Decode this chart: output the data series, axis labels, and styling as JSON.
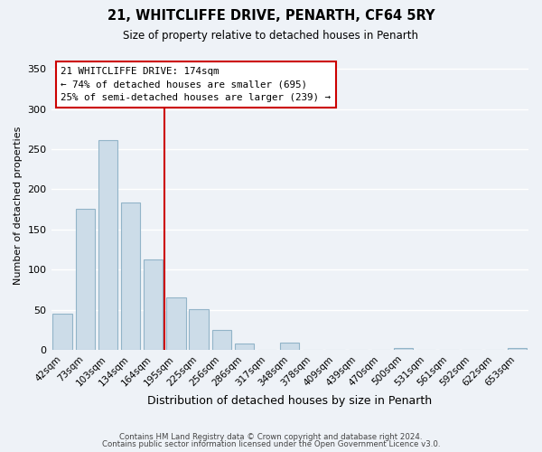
{
  "title": "21, WHITCLIFFE DRIVE, PENARTH, CF64 5RY",
  "subtitle": "Size of property relative to detached houses in Penarth",
  "xlabel": "Distribution of detached houses by size in Penarth",
  "ylabel": "Number of detached properties",
  "bar_labels": [
    "42sqm",
    "73sqm",
    "103sqm",
    "134sqm",
    "164sqm",
    "195sqm",
    "225sqm",
    "256sqm",
    "286sqm",
    "317sqm",
    "348sqm",
    "378sqm",
    "409sqm",
    "439sqm",
    "470sqm",
    "500sqm",
    "531sqm",
    "561sqm",
    "592sqm",
    "622sqm",
    "653sqm"
  ],
  "bar_values": [
    45,
    176,
    261,
    184,
    113,
    65,
    51,
    25,
    8,
    0,
    9,
    0,
    0,
    0,
    0,
    2,
    0,
    0,
    0,
    0,
    2
  ],
  "bar_color": "#ccdce8",
  "bar_edge_color": "#92b4c8",
  "reference_line_label": "21 WHITCLIFFE DRIVE: 174sqm",
  "annotation_line1": "← 74% of detached houses are smaller (695)",
  "annotation_line2": "25% of semi-detached houses are larger (239) →",
  "annotation_box_color": "#ffffff",
  "annotation_box_edge": "#cc0000",
  "vline_color": "#cc0000",
  "ylim": [
    0,
    360
  ],
  "yticks": [
    0,
    50,
    100,
    150,
    200,
    250,
    300,
    350
  ],
  "footer_line1": "Contains HM Land Registry data © Crown copyright and database right 2024.",
  "footer_line2": "Contains public sector information licensed under the Open Government Licence v3.0.",
  "background_color": "#eef2f7",
  "grid_color": "#ffffff"
}
